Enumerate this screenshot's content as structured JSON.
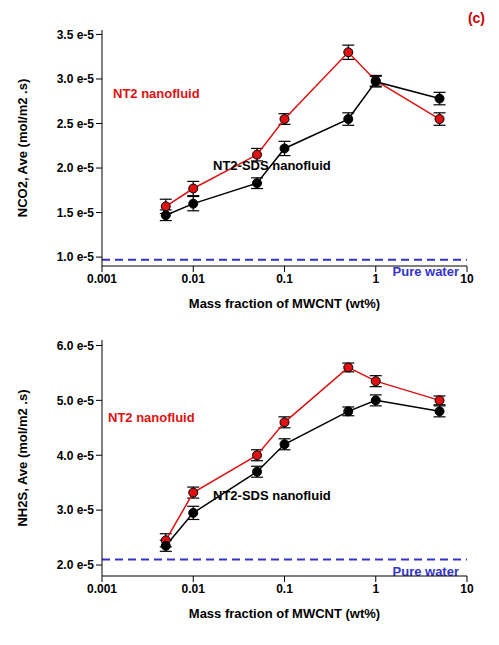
{
  "chart_data": [
    {
      "type": "line",
      "title": "(c)",
      "title_color": "#cc0000",
      "x_label": "Mass fraction of MWCNT (wt%)",
      "y_label": "NCO2, Ave (mol/m2 .s)",
      "log": "x",
      "x": [
        0.005,
        0.01,
        0.05,
        0.1,
        0.5,
        1,
        5
      ],
      "xlim": [
        0.001,
        10
      ],
      "xticks": [
        0.001,
        0.01,
        0.1,
        1,
        10
      ],
      "ylim": [
        9e-06,
        3.55e-05
      ],
      "yticks": [
        {
          "value": 1e-05,
          "label": "1.0 e-5"
        },
        {
          "value": 1.5e-05,
          "label": "1.5 e-5"
        },
        {
          "value": 2e-05,
          "label": "2.0 e-5"
        },
        {
          "value": 2.5e-05,
          "label": "2.5 e-5"
        },
        {
          "value": 3e-05,
          "label": "3.0 e-5"
        },
        {
          "value": 3.5e-05,
          "label": "3.5 e-5"
        }
      ],
      "grid": false,
      "series": [
        {
          "name": "NT2 nanofluid",
          "color": "#dd1111",
          "marker": "circle",
          "values": [
            1.57e-05,
            1.77e-05,
            2.15e-05,
            2.55e-05,
            3.3e-05,
            2.98e-05,
            2.55e-05
          ],
          "errors": [
            8e-07,
            8e-07,
            7e-07,
            6e-07,
            8e-07,
            6e-07,
            7e-07
          ]
        },
        {
          "name": "NT2-SDS nanofluid",
          "color": "#000000",
          "marker": "circle",
          "values": [
            1.47e-05,
            1.6e-05,
            1.83e-05,
            2.22e-05,
            2.55e-05,
            2.97e-05,
            2.78e-05
          ],
          "errors": [
            6e-07,
            8e-07,
            6e-07,
            8e-07,
            7e-07,
            6e-07,
            7e-07
          ]
        }
      ],
      "reference": {
        "name": "Pure water",
        "value": 9.7e-06,
        "color": "#3333cc",
        "line_style": "dashed"
      }
    },
    {
      "type": "line",
      "x_label": "Mass fraction of MWCNT (wt%)",
      "y_label": "NH2S, Ave (mol/m2 .s)",
      "log": "x",
      "x": [
        0.005,
        0.01,
        0.05,
        0.1,
        0.5,
        1,
        5
      ],
      "xlim": [
        0.001,
        10
      ],
      "xticks": [
        0.001,
        0.01,
        0.1,
        1,
        10
      ],
      "ylim": [
        1.8e-05,
        6.1e-05
      ],
      "yticks": [
        {
          "value": 2e-05,
          "label": "2.0 e-5"
        },
        {
          "value": 3e-05,
          "label": "3.0 e-5"
        },
        {
          "value": 4e-05,
          "label": "4.0 e-5"
        },
        {
          "value": 5e-05,
          "label": "5.0 e-5"
        },
        {
          "value": 6e-05,
          "label": "6.0 e-5"
        }
      ],
      "grid": false,
      "series": [
        {
          "name": "NT2 nanofluid",
          "color": "#dd1111",
          "marker": "circle",
          "values": [
            2.45e-05,
            3.32e-05,
            4e-05,
            4.6e-05,
            5.6e-05,
            5.35e-05,
            5e-05
          ],
          "errors": [
            1.2e-06,
            1e-06,
            1e-06,
            1e-06,
            8e-07,
            1e-06,
            8e-07
          ]
        },
        {
          "name": "NT2-SDS nanofluid",
          "color": "#000000",
          "marker": "circle",
          "values": [
            2.35e-05,
            2.95e-05,
            3.7e-05,
            4.2e-05,
            4.8e-05,
            5e-05,
            4.8e-05
          ],
          "errors": [
            1e-06,
            1.2e-06,
            1e-06,
            1e-06,
            8e-07,
            1e-06,
            1e-06
          ]
        }
      ],
      "reference": {
        "name": "Pure water",
        "value": 2.1e-05,
        "color": "#3333cc",
        "line_style": "dashed"
      }
    }
  ]
}
